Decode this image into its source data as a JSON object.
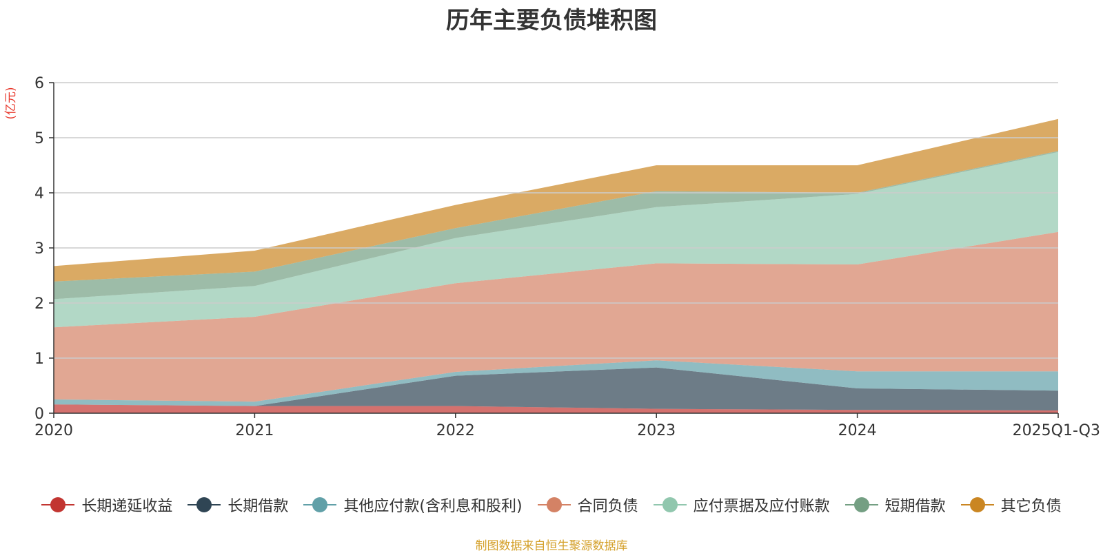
{
  "chart_data": {
    "type": "area",
    "stacked": true,
    "title": "历年主要负债堆积图",
    "ylabel": "(亿元)",
    "xlabel": "",
    "categories": [
      "2020",
      "2021",
      "2022",
      "2023",
      "2024",
      "2025Q1-Q3"
    ],
    "ylim": [
      0,
      6
    ],
    "yticks": [
      0,
      1,
      2,
      3,
      4,
      5,
      6
    ],
    "grid": true,
    "legend_position": "bottom",
    "series": [
      {
        "name": "长期递延收益",
        "color": "#c23531",
        "values": [
          0.16,
          0.13,
          0.13,
          0.08,
          0.06,
          0.05
        ]
      },
      {
        "name": "长期借款",
        "color": "#2f4554",
        "values": [
          0.0,
          0.0,
          0.55,
          0.75,
          0.39,
          0.36
        ]
      },
      {
        "name": "其他应付款(含利息和股利)",
        "color": "#61a0a8",
        "values": [
          0.09,
          0.08,
          0.07,
          0.13,
          0.31,
          0.35
        ]
      },
      {
        "name": "合同负债",
        "color": "#d48265",
        "values": [
          1.31,
          1.54,
          1.61,
          1.76,
          1.94,
          2.53
        ]
      },
      {
        "name": "应付票据及应付账款",
        "color": "#91c7ae",
        "values": [
          0.51,
          0.56,
          0.82,
          1.02,
          1.28,
          1.45
        ]
      },
      {
        "name": "短期借款",
        "color": "#749f83",
        "values": [
          0.32,
          0.26,
          0.18,
          0.29,
          0.02,
          0.02
        ]
      },
      {
        "name": "其它负债",
        "color": "#ca8622",
        "values": [
          0.28,
          0.38,
          0.42,
          0.47,
          0.5,
          0.58
        ]
      }
    ]
  },
  "source_note": "制图数据来自恒生聚源数据库",
  "colors": {
    "title": "#333333",
    "axis": "#333333",
    "grid": "#cccccc",
    "unit_label": "#e8382c",
    "source_note": "#d4a02a"
  }
}
